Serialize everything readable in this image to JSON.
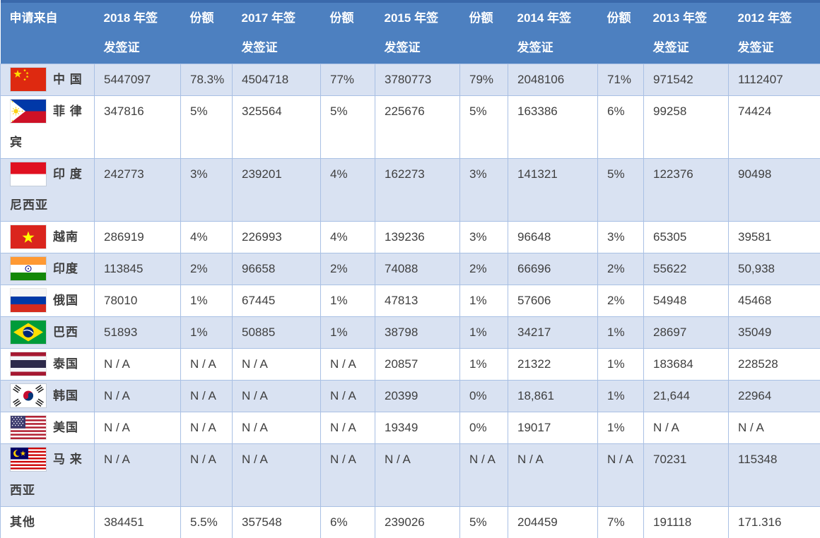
{
  "colors": {
    "header_bg": "#4d80c0",
    "header_top_border": "#3a69ab",
    "row_alt_bg": "#d9e2f2",
    "row_bg": "#ffffff",
    "grid_border": "#a9c0e4",
    "header_text": "#ffffff",
    "body_text": "#3f3f3f"
  },
  "table": {
    "columns": [
      {
        "key": "origin",
        "label": "申请来自"
      },
      {
        "key": "visas-2018",
        "label": "2018 年签\n发签证"
      },
      {
        "key": "share-2018",
        "label": "份额"
      },
      {
        "key": "visas-2017",
        "label": "2017 年签\n发签证"
      },
      {
        "key": "share-2017",
        "label": "份额"
      },
      {
        "key": "visas-2015",
        "label": "2015 年签\n发签证"
      },
      {
        "key": "share-2015",
        "label": "份额"
      },
      {
        "key": "visas-2014",
        "label": "2014 年签\n发签证"
      },
      {
        "key": "share-2014",
        "label": "份额"
      },
      {
        "key": "visas-2013",
        "label": "2013 年签\n发签证"
      },
      {
        "key": "visas-2012",
        "label": "2012 年签\n发签证"
      }
    ],
    "rows": [
      {
        "key": "china",
        "name": "中国",
        "label": "中 国",
        "flag": "china-flag",
        "cells": [
          "5447097",
          "78.3%",
          "4504718",
          "77%",
          "3780773",
          "79%",
          "2048106",
          "71%",
          "971542",
          "1112407"
        ]
      },
      {
        "key": "philippines",
        "name": "菲律宾",
        "label": "菲 律\n宾",
        "flag": "philippines-flag",
        "cells": [
          "347816",
          "5%",
          "325564",
          "5%",
          "225676",
          "5%",
          "163386",
          "6%",
          "99258",
          "74424"
        ]
      },
      {
        "key": "indonesia",
        "name": "印度尼西亚",
        "label": "印 度\n尼西亚",
        "flag": "indonesia-flag",
        "cells": [
          "242773",
          "3%",
          "239201",
          "4%",
          "162273",
          "3%",
          "141321",
          "5%",
          "122376",
          "90498"
        ]
      },
      {
        "key": "vietnam",
        "name": "越南",
        "label": "越南",
        "flag": "vietnam-flag",
        "cells": [
          "286919",
          "4%",
          "226993",
          "4%",
          "139236",
          "3%",
          "96648",
          "3%",
          "65305",
          "39581"
        ]
      },
      {
        "key": "india",
        "name": "印度",
        "label": "印度",
        "flag": "india-flag",
        "cells": [
          "113845",
          "2%",
          "96658",
          "2%",
          "74088",
          "2%",
          "66696",
          "2%",
          "55622",
          "50,938"
        ]
      },
      {
        "key": "russia",
        "name": "俄国",
        "label": "俄国",
        "flag": "russia-flag",
        "cells": [
          "78010",
          "1%",
          "67445",
          "1%",
          "47813",
          "1%",
          "57606",
          "2%",
          "54948",
          "45468"
        ]
      },
      {
        "key": "brazil",
        "name": "巴西",
        "label": "巴西",
        "flag": "brazil-flag",
        "cells": [
          "51893",
          "1%",
          "50885",
          "1%",
          "38798",
          "1%",
          "34217",
          "1%",
          "28697",
          "35049"
        ]
      },
      {
        "key": "thailand",
        "name": "泰国",
        "label": "泰国",
        "flag": "thailand-flag",
        "cells": [
          "N / A",
          "N / A",
          "N / A",
          "N / A",
          "20857",
          "1%",
          "21322",
          "1%",
          "183684",
          "228528"
        ]
      },
      {
        "key": "south-korea",
        "name": "韩国",
        "label": "韩国",
        "flag": "south-korea-flag",
        "cells": [
          "N / A",
          "N / A",
          "N / A",
          "N / A",
          "20399",
          "0%",
          "18,861",
          "1%",
          "21,644",
          "22964"
        ]
      },
      {
        "key": "usa",
        "name": "美国",
        "label": "美国",
        "flag": "usa-flag",
        "cells": [
          "N / A",
          "N / A",
          "N / A",
          "N / A",
          "19349",
          "0%",
          "19017",
          "1%",
          "N / A",
          "N / A"
        ]
      },
      {
        "key": "malaysia",
        "name": "马来西亚",
        "label": "马 来\n西亚",
        "flag": "malaysia-flag",
        "cells": [
          "N / A",
          "N / A",
          "N / A",
          "N / A",
          "N / A",
          "N / A",
          "N / A",
          "N / A",
          "70231",
          "115348"
        ]
      },
      {
        "key": "others",
        "name": "其他",
        "label": "其他",
        "flag": null,
        "cells": [
          "384451",
          "5.5%",
          "357548",
          "6%",
          "239026",
          "5%",
          "204459",
          "7%",
          "191118",
          "171.316"
        ]
      }
    ]
  }
}
